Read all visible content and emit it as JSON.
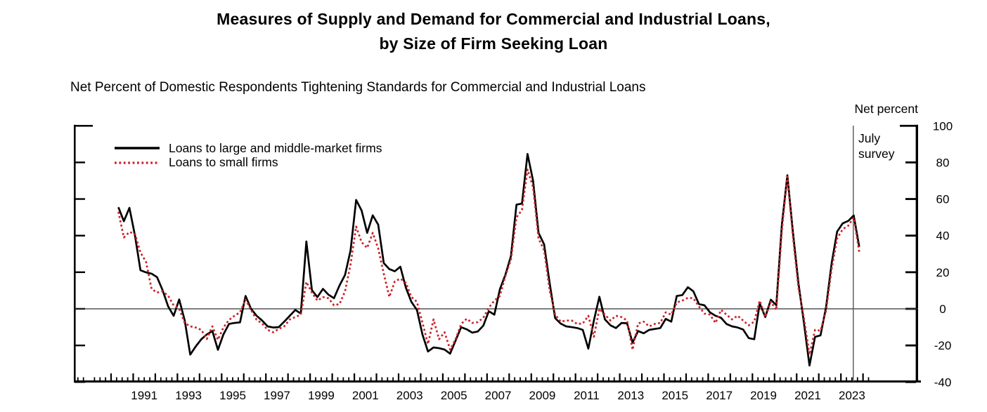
{
  "title": {
    "line1": "Measures of Supply and Demand for Commercial and Industrial Loans,",
    "line2": "by Size of Firm Seeking Loan"
  },
  "subtitle": "Net Percent of Domestic Respondents Tightening Standards for Commercial and Industrial Loans",
  "axis_note": "Net percent",
  "annotation": {
    "line1": "July",
    "line2": "survey"
  },
  "legend": [
    {
      "label": "Loans to large and middle-market firms",
      "color": "#000000",
      "dash": ""
    },
    {
      "label": "Loans to small firms",
      "color": "#cc2228",
      "dash": "2.8 3.6"
    }
  ],
  "colors": {
    "large_firms": "#000000",
    "small_firms": "#cc2228",
    "zero_line": "#333333",
    "survey_line": "#555555"
  },
  "chart_data": {
    "type": "line",
    "title": "Net Percent of Domestic Respondents Tightening Standards for Commercial and Industrial Loans",
    "ylabel": "Net percent",
    "ylim": [
      -40,
      100
    ],
    "yticks": [
      100,
      80,
      60,
      40,
      20,
      0,
      -20,
      -40
    ],
    "grid": "zero-line-only",
    "legend_position": "top-left-inside",
    "x_unit": "quarterly surveys",
    "x_start": 1990.33,
    "x_step": 0.25,
    "x_tick_years": [
      1990,
      2024
    ],
    "x_label_years": [
      1991,
      1993,
      1995,
      1997,
      1999,
      2001,
      2003,
      2005,
      2007,
      2009,
      2011,
      2013,
      2015,
      2017,
      2019,
      2021,
      2023
    ],
    "july_line_t": 2023.56,
    "series": [
      {
        "name": "Loans to large and middle-market firms",
        "id": "large-and-middle-market-firms-line",
        "color": "#000000",
        "dash": "",
        "values": [
          55.5,
          47.9,
          55.2,
          40,
          21.1,
          19.9,
          19.2,
          17.3,
          10.2,
          1.3,
          -3.8,
          5.1,
          -6.4,
          -25,
          -20.5,
          -16.6,
          -14,
          -12.1,
          -22.4,
          -14,
          -8.3,
          -7.7,
          -7.4,
          7,
          0,
          -3.8,
          -6.4,
          -9.6,
          -10.2,
          -10,
          -7,
          -3.8,
          -0.6,
          -2.6,
          36.8,
          10.2,
          6.4,
          10.9,
          7.7,
          5.8,
          12.8,
          18.5,
          32,
          59.5,
          53.7,
          41.5,
          51.1,
          46,
          25,
          21.7,
          20.5,
          23,
          11.5,
          3.8,
          -0.6,
          -14.1,
          -23.3,
          -21.1,
          -21.5,
          -22.3,
          -24.5,
          -17.3,
          -10,
          -11.2,
          -13,
          -12.4,
          -9.2,
          -1.3,
          -3.2,
          10.7,
          18.6,
          28.8,
          56.9,
          57.5,
          84.6,
          70,
          41.5,
          35.2,
          14,
          -5.1,
          -8.1,
          -9.6,
          -10,
          -10.5,
          -11.5,
          -21.8,
          -6.4,
          6.6,
          -5.8,
          -9,
          -10.5,
          -7.7,
          -7.9,
          -18.5,
          -12.1,
          -13.4,
          -11.5,
          -11,
          -10.5,
          -5.5,
          -7,
          7,
          7.5,
          11.8,
          9.6,
          2.6,
          1.9,
          -1.9,
          -3.8,
          -4.9,
          -8.3,
          -9.6,
          -10.2,
          -11.3,
          -16,
          -16.6,
          3,
          -4.5,
          5,
          2,
          46,
          73,
          42,
          14,
          -7.7,
          -31,
          -15.3,
          -14.5,
          1,
          24.9,
          42.2,
          46.7,
          48,
          51,
          33.9
        ]
      },
      {
        "name": "Loans to small firms",
        "id": "small-firms-line",
        "color": "#cc2228",
        "dash": "2.8 3.4",
        "values": [
          53,
          39,
          42,
          41,
          30.7,
          25.7,
          10.9,
          8.9,
          9.6,
          7.1,
          1.9,
          0,
          -7.7,
          -9.6,
          -10.2,
          -11.5,
          -16.5,
          -9.6,
          -16.9,
          -10.2,
          -6.1,
          -3.8,
          -1.9,
          5.1,
          -0.6,
          -6,
          -8,
          -11.5,
          -12.8,
          -11,
          -9.6,
          -5.8,
          -4.5,
          -3.2,
          14.7,
          8.9,
          4.5,
          6.4,
          5.8,
          1.9,
          2.6,
          9.6,
          24.3,
          45,
          36.4,
          33.3,
          41.5,
          33,
          19.2,
          6.5,
          15,
          16.5,
          14.2,
          6.5,
          3.8,
          -7.7,
          -19.2,
          -5.8,
          -16.6,
          -12.8,
          -22.3,
          -16.6,
          -8.3,
          -5.4,
          -7.7,
          -7.3,
          -4.9,
          0.6,
          4.5,
          7,
          17.9,
          26.9,
          50,
          54,
          76.1,
          66.5,
          38.4,
          32,
          10,
          -3.2,
          -7,
          -6.4,
          -6.4,
          -8.3,
          -8,
          -3.8,
          -15.3,
          0,
          -3.2,
          -6.4,
          -3.8,
          -4.5,
          -6.4,
          -22.4,
          -8,
          -7,
          -9.6,
          -8.3,
          -7.7,
          -1.9,
          -3.2,
          3.5,
          4.5,
          6,
          5.8,
          1.3,
          -2.6,
          -3.2,
          -7.7,
          -0.6,
          -3.2,
          -5.8,
          -3.8,
          -6.4,
          -9,
          -7,
          4.5,
          -4.5,
          3.8,
          -0.6,
          42.8,
          72.2,
          39.6,
          11.5,
          -5.1,
          -25,
          -11.5,
          -12,
          -1,
          21.7,
          38.4,
          43.5,
          45.4,
          49.9,
          31
        ]
      }
    ]
  }
}
